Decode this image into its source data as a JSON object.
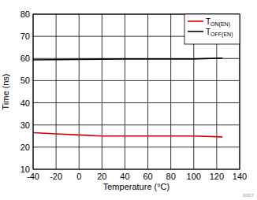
{
  "chart_data": {
    "type": "line",
    "x_label": "Temperature (°C)",
    "y_label": "Time (ns)",
    "x": [
      -40,
      -20,
      0,
      20,
      40,
      60,
      80,
      100,
      125
    ],
    "series": [
      {
        "name": "TON(EN)",
        "color": "#d40000",
        "values": [
          26.5,
          26,
          25.5,
          25,
          25,
          25,
          25,
          25,
          24.6
        ]
      },
      {
        "name": "TOFF(EN)",
        "color": "#000000",
        "values": [
          59.4,
          59.5,
          59.6,
          59.7,
          59.8,
          59.8,
          59.8,
          59.8,
          60.2
        ]
      }
    ],
    "xlim": [
      -40,
      140
    ],
    "xticks": [
      -40,
      -20,
      0,
      20,
      40,
      60,
      80,
      100,
      120,
      140
    ],
    "ylim": [
      10,
      80
    ],
    "yticks": [
      10,
      20,
      30,
      40,
      50,
      60,
      70,
      80
    ],
    "grid": true,
    "legend": "upper right",
    "annotations": [
      "D007"
    ]
  }
}
